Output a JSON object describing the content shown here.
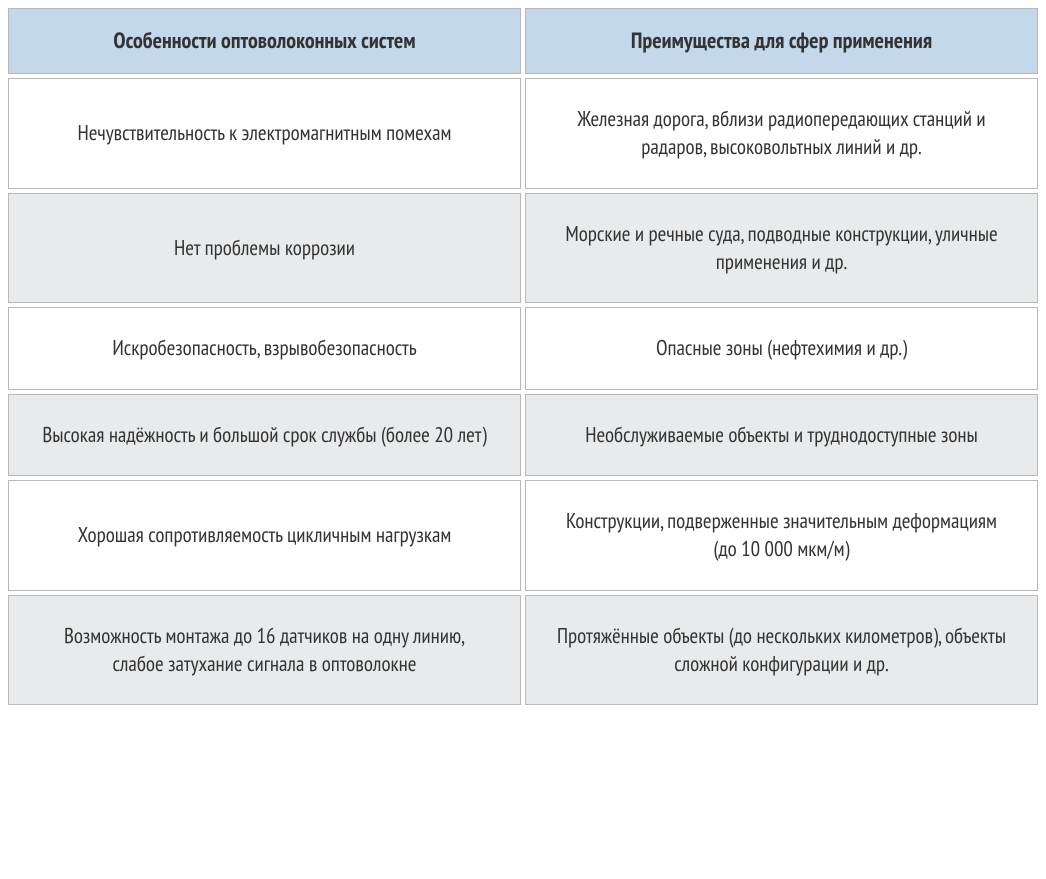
{
  "table": {
    "type": "table",
    "columns": [
      "Особенности оптоволоконных систем",
      "Преимущества для сфер применения"
    ],
    "rows": [
      {
        "feature": "Нечувствительность к электромагнитным помехам",
        "advantage": "Железная дорога, вблизи радиопередающих станций и радаров, высоковольтных линий и др."
      },
      {
        "feature": "Нет проблемы коррозии",
        "advantage": "Морские и речные суда, подводные конструкции, уличные применения и др."
      },
      {
        "feature": "Искробезопасность, взрывобезопасность",
        "advantage": "Опасные зоны (нефтехимия и др.)"
      },
      {
        "feature": "Высокая надёжность и большой срок службы (более 20 лет)",
        "advantage": "Необслуживаемые объекты и труднодоступные зоны"
      },
      {
        "feature": "Хорошая сопротивляемость цикличным нагрузкам",
        "advantage": "Конструкции, подверженные значительным деформациям (до 10 000 мкм/м)"
      },
      {
        "feature": "Возможность монтажа до 16 датчиков на одну линию, слабое затухание сигнала в оптоволокне",
        "advantage": "Протяжённые объекты (до нескольких километров), объекты сложной конфигурации и др."
      }
    ],
    "styling": {
      "header_bg": "#c3d9eb",
      "row_white_bg": "#ffffff",
      "row_grey_bg": "#e9eaeb",
      "border_color": "#b8b8b8",
      "text_color": "#333333",
      "header_fontsize": 22,
      "body_fontsize": 21,
      "cell_spacing": 4,
      "column_count": 2,
      "column_widths": [
        "50%",
        "50%"
      ]
    }
  }
}
